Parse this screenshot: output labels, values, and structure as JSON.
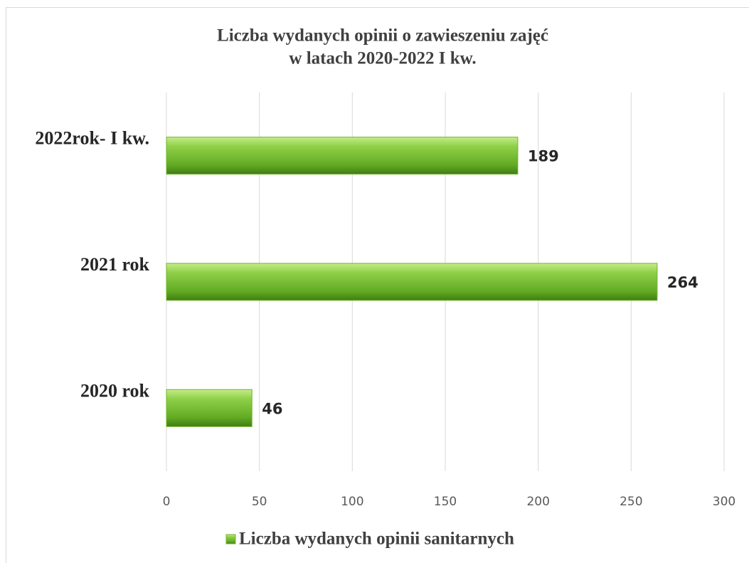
{
  "chart_data": {
    "type": "bar",
    "orientation": "horizontal",
    "title": [
      "Liczba wydanych opinii o zawieszeniu zajęć",
      "w latach 2020-2022 I kw."
    ],
    "categories": [
      "2020 rok",
      "2021 rok",
      "2022rok- I kw."
    ],
    "series": [
      {
        "name": "Liczba wydanych opinii sanitarnych",
        "color": "#6fb52c",
        "values": [
          46,
          264,
          189
        ]
      }
    ],
    "xlim": [
      0,
      300
    ],
    "xticks": [
      0,
      50,
      100,
      150,
      200,
      250,
      300
    ],
    "grid": true,
    "legend": "bottom"
  }
}
